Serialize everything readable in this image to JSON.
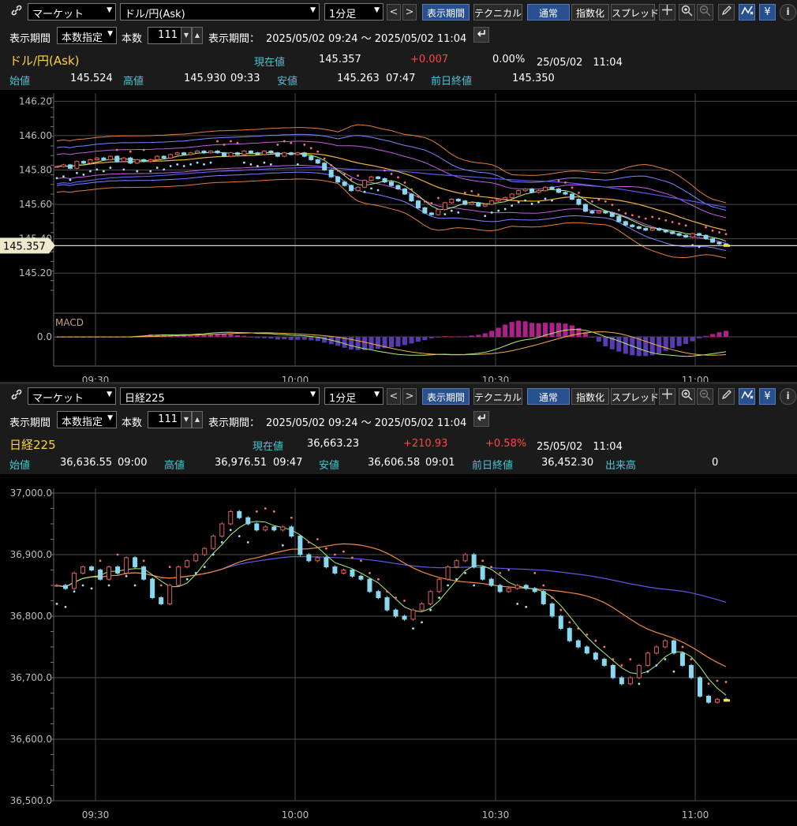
{
  "panels": [
    {
      "toolbar": {
        "market_select": "マーケット",
        "symbol_select": "ドル/円(Ask)",
        "interval_select": "1分足",
        "prev_label": "<",
        "next_label": ">",
        "period_label": "表示期間",
        "technical_label": "テクニカル",
        "normal_label": "通常",
        "index_label": "指数化",
        "spread_label": "スプレッド",
        "icons": [
          "link-icon",
          "crosshair-icon",
          "zoom-in-icon",
          "zoom-out-icon",
          "pencil-icon",
          "chart-type-icon",
          "yen-icon",
          "info-icon"
        ],
        "yen_glyph": "¥"
      },
      "period_row": {
        "period_label": "表示期間",
        "period_select": "本数指定",
        "count_label": "本数",
        "count_value": "111",
        "range_label": "表示期間：",
        "range_value": "2025/05/02 09:24 ～ 2025/05/02 11:04"
      },
      "quote": {
        "name": "ドル/円(Ask)",
        "current_label": "現在値",
        "current_value": "145.357",
        "change": "+0.007",
        "change_pct": "0.00%",
        "datetime": "25/05/02　11:04",
        "open_label": "始値",
        "open_value": "145.524",
        "high_label": "高値",
        "high_value": "145.930",
        "high_time": "09:33",
        "low_label": "安値",
        "low_value": "145.263",
        "low_time": "07:47",
        "prev_label": "前日終値",
        "prev_value": "145.350"
      },
      "chart_data": {
        "type": "candlestick",
        "y_ticks": [
          "146.20",
          "146.00",
          "145.80",
          "145.60",
          "145.40",
          "145.20"
        ],
        "ylim": [
          145.1,
          146.22
        ],
        "x_ticks": [
          "09:30",
          "10:00",
          "10:30",
          "11:00"
        ],
        "current_price_tag": "145.357",
        "sub_label": "MACD",
        "sub_tick": "0.0",
        "close": [
          145.82,
          145.83,
          145.81,
          145.85,
          145.84,
          145.86,
          145.87,
          145.86,
          145.88,
          145.85,
          145.87,
          145.84,
          145.86,
          145.85,
          145.86,
          145.88,
          145.87,
          145.89,
          145.9,
          145.89,
          145.9,
          145.91,
          145.9,
          145.91,
          145.9,
          145.88,
          145.9,
          145.89,
          145.91,
          145.9,
          145.89,
          145.91,
          145.9,
          145.88,
          145.9,
          145.89,
          145.9,
          145.88,
          145.86,
          145.84,
          145.8,
          145.76,
          145.73,
          145.71,
          145.68,
          145.7,
          145.74,
          145.76,
          145.75,
          145.73,
          145.71,
          145.69,
          145.66,
          145.62,
          145.58,
          145.55,
          145.54,
          145.57,
          145.61,
          145.63,
          145.62,
          145.6,
          145.61,
          145.59,
          145.6,
          145.62,
          145.63,
          145.64,
          145.66,
          145.68,
          145.69,
          145.67,
          145.68,
          145.7,
          145.69,
          145.67,
          145.66,
          145.63,
          145.6,
          145.56,
          145.55,
          145.56,
          145.55,
          145.53,
          145.5,
          145.48,
          145.47,
          145.46,
          145.45,
          145.46,
          145.45,
          145.44,
          145.43,
          145.42,
          145.41,
          145.43,
          145.42,
          145.4,
          145.38,
          145.37,
          145.36
        ]
      }
    },
    {
      "toolbar": {
        "market_select": "マーケット",
        "symbol_select": "日経225",
        "interval_select": "1分足",
        "prev_label": "<",
        "next_label": ">",
        "period_label": "表示期間",
        "technical_label": "テクニカル",
        "normal_label": "通常",
        "index_label": "指数化",
        "spread_label": "スプレッド",
        "icons": [
          "link-icon",
          "crosshair-icon",
          "zoom-in-icon",
          "zoom-out-icon",
          "pencil-icon",
          "chart-type-icon",
          "yen-icon",
          "info-icon"
        ],
        "yen_glyph": "¥"
      },
      "period_row": {
        "period_label": "表示期間",
        "period_select": "本数指定",
        "count_label": "本数",
        "count_value": "111",
        "range_label": "表示期間：",
        "range_value": "2025/05/02 09:24 ～ 2025/05/02 11:04"
      },
      "quote": {
        "name": "日経225",
        "current_label": "現在値",
        "current_value": "36,663.23",
        "change": "+210.93",
        "change_pct": "+0.58%",
        "datetime": "25/05/02　11:04",
        "open_label": "始値",
        "open_value": "36,636.55",
        "open_time": "09:00",
        "high_label": "高値",
        "high_value": "36,976.51",
        "high_time": "09:47",
        "low_label": "安値",
        "low_value": "36,606.58",
        "low_time": "09:01",
        "prev_label": "前日終値",
        "prev_value": "36,452.30",
        "volume_label": "出来高",
        "volume_value": "0"
      },
      "chart_data": {
        "type": "candlestick",
        "y_ticks": [
          "37,000.0",
          "36,900.0",
          "36,800.0",
          "36,700.0",
          "36,600.0",
          "36,500.0"
        ],
        "ylim": [
          36500,
          37000
        ],
        "x_ticks": [
          "09:30",
          "10:00",
          "10:30",
          "11:00"
        ],
        "close": [
          36850,
          36845,
          36870,
          36880,
          36875,
          36860,
          36880,
          36870,
          36895,
          36880,
          36860,
          36830,
          36820,
          36850,
          36880,
          36890,
          36900,
          36910,
          36930,
          36950,
          36970,
          36960,
          36950,
          36940,
          36945,
          36940,
          36945,
          36930,
          36900,
          36890,
          36895,
          36880,
          36870,
          36875,
          36865,
          36860,
          36840,
          36830,
          36810,
          36800,
          36795,
          36810,
          36820,
          36840,
          36860,
          36880,
          36890,
          36900,
          36880,
          36860,
          36850,
          36840,
          36845,
          36850,
          36845,
          36840,
          36820,
          36800,
          36780,
          36760,
          36750,
          36740,
          36730,
          36720,
          36700,
          36690,
          36700,
          36720,
          36740,
          36750,
          36760,
          36740,
          36720,
          36700,
          36670,
          36660,
          36665,
          36663
        ]
      }
    }
  ]
}
